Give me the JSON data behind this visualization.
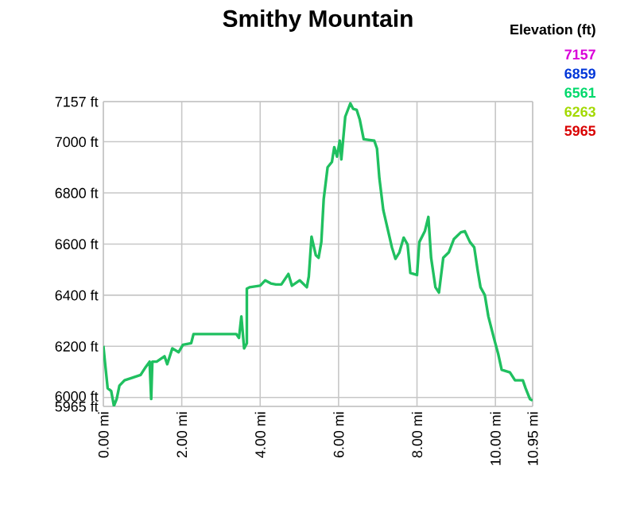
{
  "chart_data": {
    "type": "line",
    "title": "Smithy Mountain",
    "legend_title": "Elevation (ft)",
    "annotations": [
      "7157",
      "6859",
      "6561",
      "6263",
      "5965"
    ],
    "color": "#20c060",
    "xlim": [
      0,
      10.95
    ],
    "ylim": [
      5965,
      7157
    ],
    "xticks": [
      {
        "value": 0,
        "label": "0.00 mi"
      },
      {
        "value": 2,
        "label": "2.00 mi"
      },
      {
        "value": 4,
        "label": "4.00 mi"
      },
      {
        "value": 6,
        "label": "6.00 mi"
      },
      {
        "value": 8,
        "label": "8.00 mi"
      },
      {
        "value": 10,
        "label": "10.00 mi"
      },
      {
        "value": 10.95,
        "label": "10.95 mi"
      }
    ],
    "yticks": [
      {
        "value": 5965,
        "label": "5965 ft"
      },
      {
        "value": 6000,
        "label": "6000 ft"
      },
      {
        "value": 6200,
        "label": "6200 ft"
      },
      {
        "value": 6400,
        "label": "6400 ft"
      },
      {
        "value": 6600,
        "label": "6600 ft"
      },
      {
        "value": 6800,
        "label": "6800 ft"
      },
      {
        "value": 7000,
        "label": "7000 ft"
      },
      {
        "value": 7157,
        "label": "7157 ft"
      }
    ],
    "grid": true,
    "x": [
      0,
      0.04,
      0.11,
      0.2,
      0.27,
      0.34,
      0.41,
      0.54,
      0.74,
      0.95,
      1.08,
      1.18,
      1.22,
      1.25,
      1.36,
      1.56,
      1.63,
      1.76,
      1.92,
      2.03,
      2.24,
      2.3,
      3.39,
      3.46,
      3.52,
      3.59,
      3.66,
      3.66,
      3.73,
      4.0,
      4.13,
      4.27,
      4.4,
      4.54,
      4.72,
      4.81,
      5.01,
      5.19,
      5.24,
      5.31,
      5.42,
      5.49,
      5.56,
      5.62,
      5.72,
      5.83,
      5.89,
      5.96,
      6.03,
      6.07,
      6.17,
      6.3,
      6.37,
      6.46,
      6.54,
      6.64,
      6.91,
      6.98,
      7.04,
      7.14,
      7.25,
      7.36,
      7.45,
      7.55,
      7.66,
      7.76,
      7.83,
      8.0,
      8.06,
      8.2,
      8.29,
      8.36,
      8.47,
      8.56,
      8.67,
      8.81,
      8.94,
      9.12,
      9.22,
      9.35,
      9.46,
      9.55,
      9.62,
      9.73,
      9.82,
      9.96,
      10.07,
      10.16,
      10.37,
      10.5,
      10.7,
      10.77,
      10.88,
      10.95
    ],
    "values": [
      6202,
      6140,
      6036,
      6025,
      5967,
      5994,
      6046,
      6067,
      6077,
      6088,
      6119,
      6140,
      5994,
      6140,
      6140,
      6161,
      6130,
      6192,
      6177,
      6206,
      6212,
      6248,
      6248,
      6233,
      6317,
      6192,
      6212,
      6425,
      6431,
      6437,
      6458,
      6446,
      6442,
      6442,
      6483,
      6437,
      6458,
      6431,
      6473,
      6629,
      6556,
      6546,
      6608,
      6775,
      6900,
      6921,
      6979,
      6942,
      7004,
      6931,
      7098,
      7150,
      7129,
      7125,
      7087,
      7010,
      7004,
      6973,
      6858,
      6733,
      6660,
      6587,
      6542,
      6567,
      6625,
      6598,
      6487,
      6479,
      6608,
      6650,
      6706,
      6546,
      6431,
      6410,
      6546,
      6567,
      6619,
      6646,
      6650,
      6608,
      6587,
      6494,
      6431,
      6400,
      6317,
      6233,
      6171,
      6108,
      6098,
      6067,
      6067,
      6036,
      5994,
      5988
    ]
  }
}
